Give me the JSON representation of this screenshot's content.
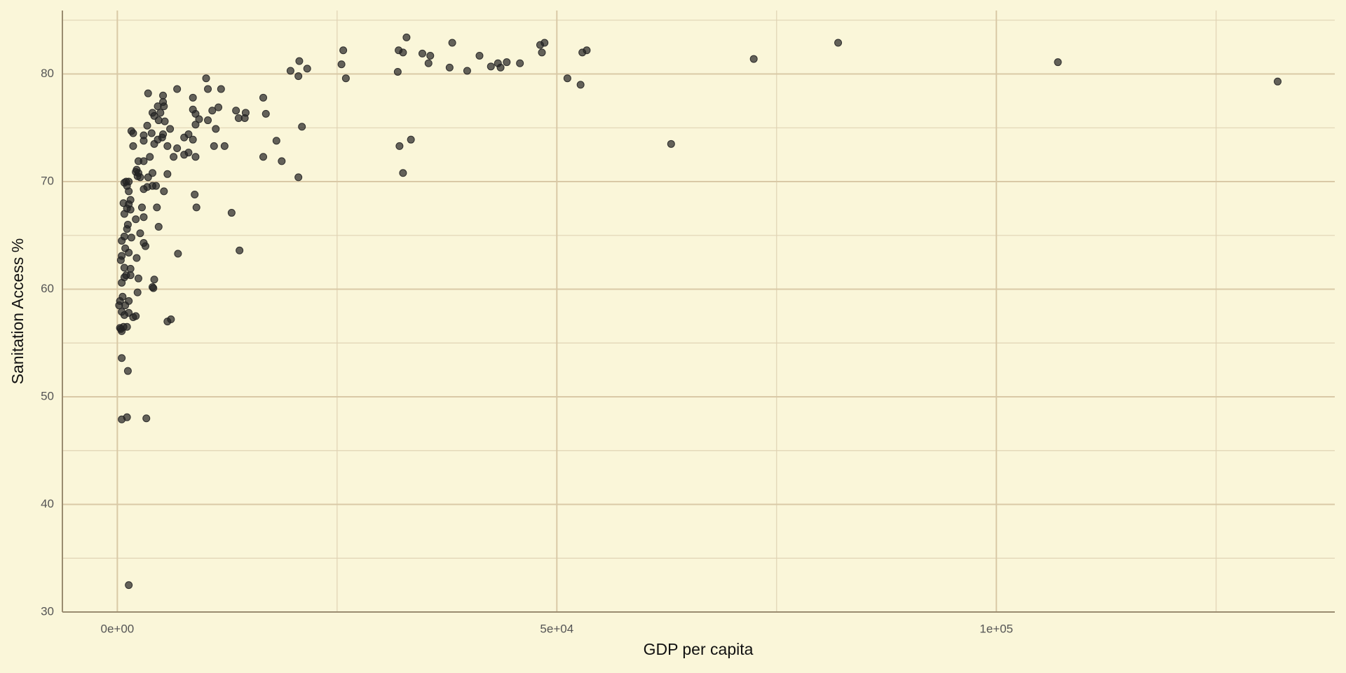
{
  "chart_data": {
    "type": "scatter",
    "x_label": "GDP per capita",
    "y_label": "Sanitation Access %",
    "xlim": [
      -6250,
      138500
    ],
    "ylim": [
      30,
      85.9
    ],
    "xticks": [
      {
        "value": 0,
        "label": "0e+00"
      },
      {
        "value": 50000,
        "label": "5e+04"
      },
      {
        "value": 100000,
        "label": "1e+05"
      }
    ],
    "yticks": [
      30,
      40,
      50,
      60,
      70,
      80
    ],
    "xminor": [
      25000,
      75000,
      125000
    ],
    "yminor": [
      35,
      45,
      55,
      65,
      75,
      85
    ],
    "grid": true,
    "color": "#222222",
    "x": [
      132000,
      107000,
      82000,
      72400,
      63000,
      53400,
      52900,
      52700,
      51200,
      48600,
      48100,
      48300,
      45800,
      44300,
      43300,
      43600,
      42500,
      41200,
      39800,
      38100,
      37800,
      35600,
      34700,
      35400,
      32900,
      32000,
      32500,
      31900,
      33400,
      32100,
      32500,
      25700,
      25500,
      26000,
      20700,
      19700,
      21600,
      20600,
      21000,
      18100,
      18700,
      16600,
      20600,
      16600,
      16900,
      14600,
      14500,
      13800,
      13500,
      13000,
      13900,
      11800,
      11500,
      10800,
      11200,
      11000,
      12200,
      10100,
      10300,
      10300,
      8600,
      8600,
      8900,
      9300,
      8900,
      8600,
      8900,
      8100,
      7600,
      8100,
      7600,
      8800,
      9000,
      6900,
      6800,
      6800,
      6400,
      6000,
      5700,
      5700,
      5200,
      5200,
      5300,
      4600,
      4900,
      5400,
      4700,
      5200,
      5100,
      4600,
      4200,
      4000,
      4200,
      3500,
      3900,
      3400,
      3000,
      3000,
      3000,
      3700,
      2400,
      4000,
      3500,
      4400,
      4000,
      3400,
      5300,
      4500,
      4700,
      3000,
      2600,
      2100,
      2200,
      2300,
      2400,
      1800,
      1600,
      1800,
      2800,
      3000,
      2100,
      2600,
      3000,
      3200,
      2200,
      1300,
      1000,
      1300,
      800,
      1100,
      1500,
      1300,
      1100,
      1500,
      700,
      800,
      1200,
      1100,
      1600,
      800,
      500,
      900,
      1300,
      500,
      400,
      800,
      1500,
      1000,
      1500,
      800,
      2400,
      4200,
      4000,
      4100,
      500,
      2300,
      1300,
      300,
      600,
      900,
      200,
      500,
      1300,
      800,
      1800,
      2100,
      5700,
      6100,
      1100,
      700,
      300,
      500,
      500,
      1200,
      1100,
      500,
      3300,
      1300,
      400
    ],
    "y": [
      79.3,
      81.1,
      82.9,
      81.4,
      73.5,
      82.2,
      82.0,
      79.0,
      79.6,
      82.9,
      82.7,
      82.0,
      81.0,
      81.1,
      81.0,
      80.6,
      80.7,
      81.7,
      80.3,
      82.9,
      80.6,
      81.7,
      81.9,
      81.0,
      83.4,
      82.2,
      82.0,
      80.2,
      73.9,
      73.3,
      70.8,
      82.2,
      80.9,
      79.6,
      81.2,
      80.3,
      80.5,
      79.8,
      75.1,
      73.8,
      71.9,
      72.3,
      70.4,
      77.8,
      76.3,
      76.4,
      75.9,
      75.9,
      76.6,
      67.1,
      63.6,
      78.6,
      76.9,
      76.6,
      74.9,
      73.3,
      73.3,
      79.6,
      78.6,
      75.7,
      77.8,
      76.7,
      76.3,
      75.8,
      75.3,
      73.9,
      72.3,
      72.7,
      72.5,
      74.4,
      74.1,
      68.8,
      67.6,
      63.3,
      78.6,
      73.1,
      72.3,
      74.9,
      73.3,
      70.7,
      78.0,
      77.4,
      77.0,
      77.0,
      76.4,
      75.6,
      75.7,
      74.4,
      74.1,
      73.9,
      73.5,
      76.4,
      76.1,
      78.2,
      74.5,
      75.2,
      74.3,
      73.8,
      71.9,
      72.3,
      71.9,
      70.8,
      70.4,
      69.6,
      69.6,
      69.5,
      69.1,
      67.6,
      65.8,
      69.3,
      70.4,
      70.9,
      71.1,
      70.5,
      70.8,
      73.3,
      74.7,
      74.5,
      67.6,
      66.7,
      66.5,
      65.2,
      64.3,
      64.0,
      62.9,
      69.1,
      70.0,
      70.0,
      69.9,
      69.6,
      68.3,
      67.9,
      67.5,
      67.4,
      68.0,
      67.0,
      66.0,
      65.6,
      64.8,
      64.9,
      64.5,
      63.8,
      63.4,
      63.1,
      62.7,
      62.0,
      61.9,
      61.3,
      61.3,
      61.1,
      61.0,
      60.9,
      60.2,
      60.1,
      60.6,
      59.7,
      58.9,
      58.9,
      59.3,
      58.5,
      58.5,
      57.9,
      57.8,
      57.6,
      57.4,
      57.5,
      57.0,
      57.2,
      56.5,
      56.5,
      56.4,
      56.1,
      53.6,
      52.4,
      48.1,
      47.9,
      48.0,
      32.5,
      56.3
    ]
  }
}
